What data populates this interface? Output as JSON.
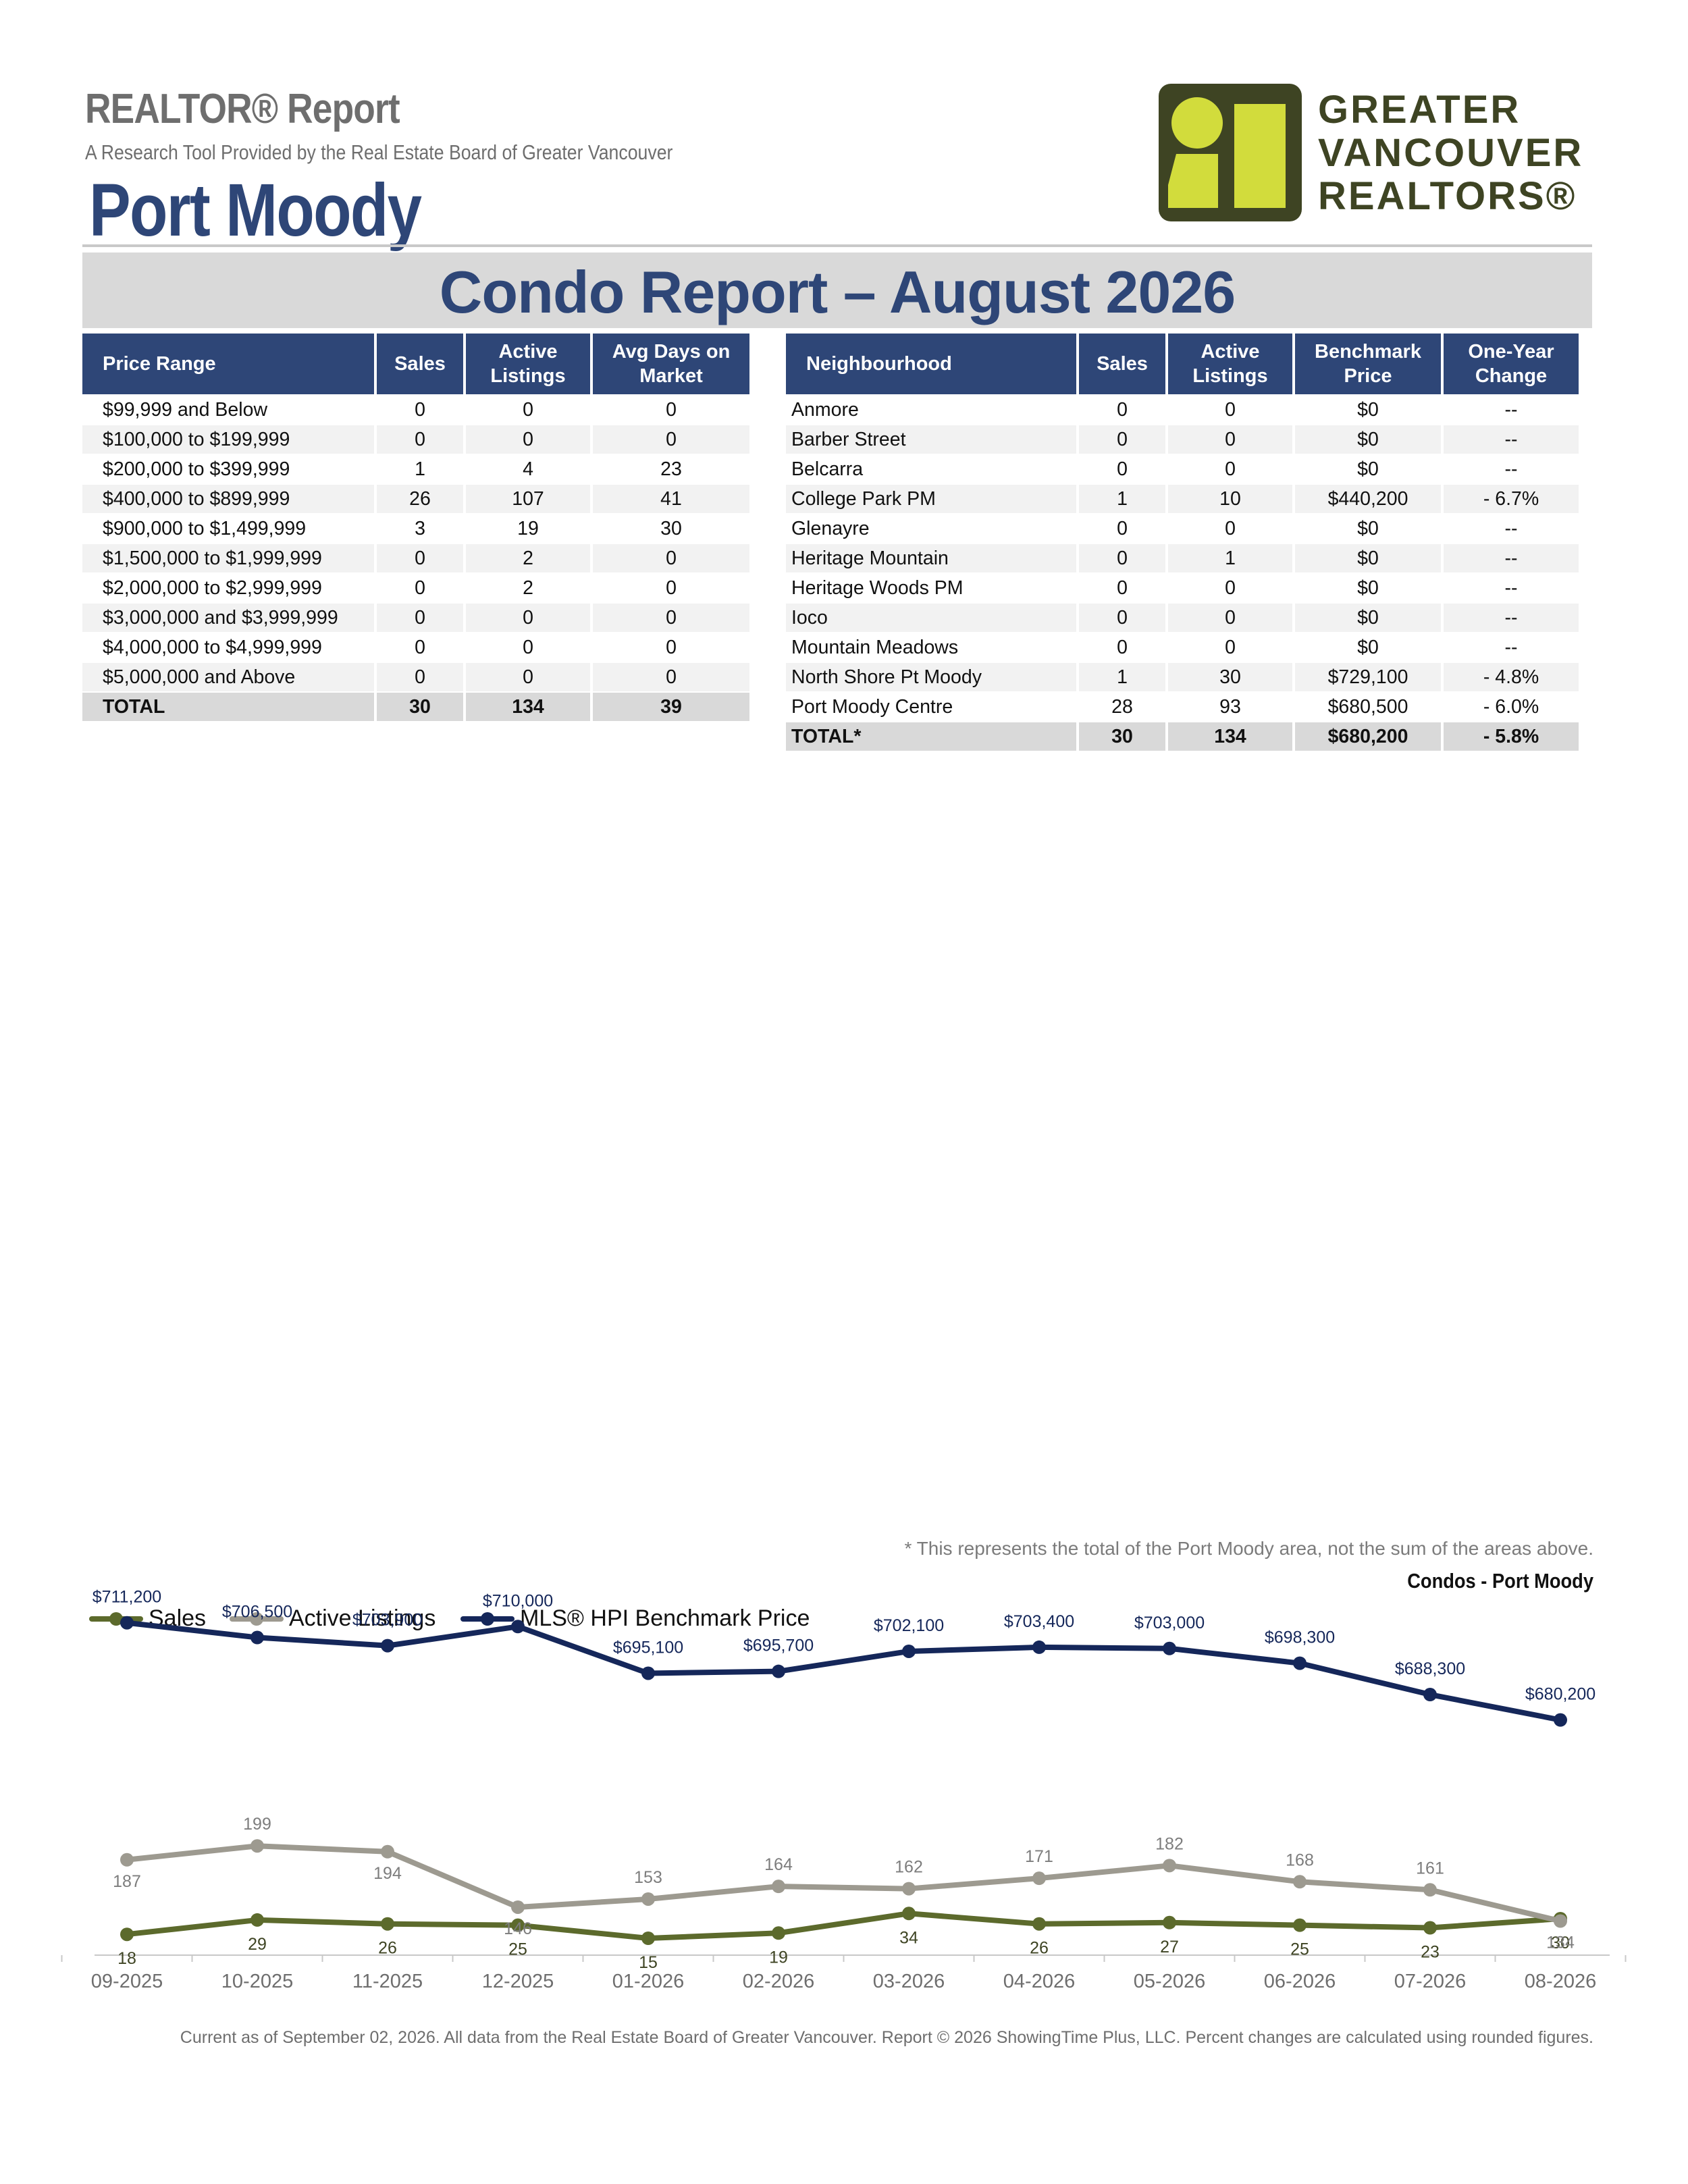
{
  "header": {
    "kicker": "REALTOR® Report",
    "subtitle": "A Research Tool Provided by the Real Estate Board of Greater Vancouver",
    "area": "Port Moody",
    "logo": {
      "line1": "GREATER",
      "line2": "VANCOUVER",
      "line3": "REALTORS®",
      "colors": {
        "mark": "#3e4423",
        "accent": "#d2dc3c"
      }
    }
  },
  "banner": {
    "title": "Condo Report – August 2026"
  },
  "price_table": {
    "headers": [
      "Price Range",
      "Sales",
      "Active Listings",
      "Avg Days on Market"
    ],
    "rows": [
      [
        "$99,999 and Below",
        "0",
        "0",
        "0"
      ],
      [
        "$100,000 to $199,999",
        "0",
        "0",
        "0"
      ],
      [
        "$200,000 to $399,999",
        "1",
        "4",
        "23"
      ],
      [
        "$400,000 to $899,999",
        "26",
        "107",
        "41"
      ],
      [
        "$900,000 to $1,499,999",
        "3",
        "19",
        "30"
      ],
      [
        "$1,500,000 to $1,999,999",
        "0",
        "2",
        "0"
      ],
      [
        "$2,000,000 to $2,999,999",
        "0",
        "2",
        "0"
      ],
      [
        "$3,000,000 and $3,999,999",
        "0",
        "0",
        "0"
      ],
      [
        "$4,000,000 to $4,999,999",
        "0",
        "0",
        "0"
      ],
      [
        "$5,000,000 and Above",
        "0",
        "0",
        "0"
      ]
    ],
    "total": [
      "TOTAL",
      "30",
      "134",
      "39"
    ]
  },
  "neighbourhood_table": {
    "headers": [
      "Neighbourhood",
      "Sales",
      "Active Listings",
      "Benchmark Price",
      "One-Year Change"
    ],
    "rows": [
      [
        "Anmore",
        "0",
        "0",
        "$0",
        "--"
      ],
      [
        "Barber Street",
        "0",
        "0",
        "$0",
        "--"
      ],
      [
        "Belcarra",
        "0",
        "0",
        "$0",
        "--"
      ],
      [
        "College Park PM",
        "1",
        "10",
        "$440,200",
        "- 6.7%"
      ],
      [
        "Glenayre",
        "0",
        "0",
        "$0",
        "--"
      ],
      [
        "Heritage Mountain",
        "0",
        "1",
        "$0",
        "--"
      ],
      [
        "Heritage Woods PM",
        "0",
        "0",
        "$0",
        "--"
      ],
      [
        "Ioco",
        "0",
        "0",
        "$0",
        "--"
      ],
      [
        "Mountain Meadows",
        "0",
        "0",
        "$0",
        "--"
      ],
      [
        "North Shore Pt Moody",
        "1",
        "30",
        "$729,100",
        "- 4.8%"
      ],
      [
        "Port Moody Centre",
        "28",
        "93",
        "$680,500",
        "- 6.0%"
      ]
    ],
    "total": [
      "TOTAL*",
      "30",
      "134",
      "$680,200",
      "- 5.8%"
    ]
  },
  "footnote": "* This represents the total of the Port Moody area, not the sum of the areas above.",
  "chart_caption": "Condos - Port Moody",
  "chart_data": {
    "type": "line",
    "x": [
      "09-2025",
      "10-2025",
      "11-2025",
      "12-2025",
      "01-2026",
      "02-2026",
      "03-2026",
      "04-2026",
      "05-2026",
      "06-2026",
      "07-2026",
      "08-2026"
    ],
    "series": [
      {
        "name": "Sales",
        "color": "#5c6a2c",
        "values": [
          18,
          29,
          26,
          25,
          15,
          19,
          34,
          26,
          27,
          25,
          23,
          30
        ],
        "labels": [
          "18",
          "29",
          "26",
          "25",
          "15",
          "19",
          "34",
          "26",
          "27",
          "25",
          "23",
          "30"
        ]
      },
      {
        "name": "Active Listings",
        "color": "#9d9a90",
        "values": [
          187,
          199,
          194,
          146,
          153,
          164,
          162,
          171,
          182,
          168,
          161,
          134
        ],
        "labels": [
          "187",
          "199",
          "194",
          "146",
          "153",
          "164",
          "162",
          "171",
          "182",
          "168",
          "161",
          "134"
        ]
      },
      {
        "name": "MLS® HPI Benchmark Price",
        "color": "#15275a",
        "values": [
          711200,
          706500,
          703900,
          710000,
          695100,
          695700,
          702100,
          703400,
          703000,
          698300,
          688300,
          680200
        ],
        "labels": [
          "$711,200",
          "$706,500",
          "$703,900",
          "$710,000",
          "$695,100",
          "$695,700",
          "$702,100",
          "$703,400",
          "$703,000",
          "$698,300",
          "$688,300",
          "$680,200"
        ]
      }
    ],
    "legend": "top-left",
    "grid": false
  },
  "credit": "Current as of September 02, 2026. All data from the Real Estate Board of Greater Vancouver.  Report © 2026 ShowingTime Plus, LLC. Percent changes are calculated using rounded figures."
}
